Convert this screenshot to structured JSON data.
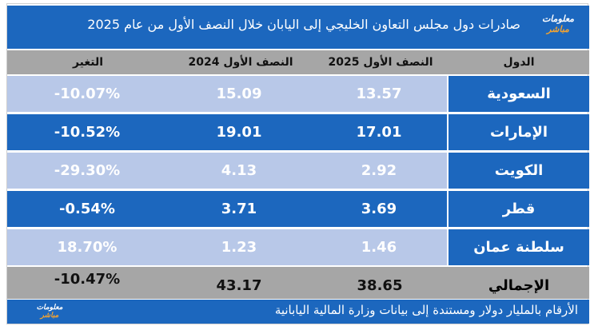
{
  "header": {
    "title": "صادرات دول مجلس التعاون الخليجي إلى اليابان خلال النصف الأول من عام 2025",
    "logo_line1": "معلومات",
    "logo_line2": "مباشر"
  },
  "columns": {
    "country": "الدول",
    "h1_2025": "النصف الأول 2025",
    "h1_2024": "النصف الأول 2024",
    "change": "التغير"
  },
  "rows": [
    {
      "country": "السعودية",
      "h1_2025": "13.57",
      "h1_2024": "15.09",
      "change": "-10.07%"
    },
    {
      "country": "الإمارات",
      "h1_2025": "17.01",
      "h1_2024": "19.01",
      "change": "-10.52%"
    },
    {
      "country": "الكويت",
      "h1_2025": "2.92",
      "h1_2024": "4.13",
      "change": "-29.30%"
    },
    {
      "country": "قطر",
      "h1_2025": "3.69",
      "h1_2024": "3.71",
      "change": "-0.54%"
    },
    {
      "country": "سلطنة عمان",
      "h1_2025": "1.46",
      "h1_2024": "1.23",
      "change": "18.70%"
    }
  ],
  "total": {
    "label": "الإجمالي",
    "h1_2025": "38.65",
    "h1_2024": "43.17",
    "change": "-10.47%"
  },
  "footer": {
    "note": "الأرقام بالمليار دولار ومستندة إلى بيانات وزارة المالية اليابانية",
    "logo_line1": "معلومات",
    "logo_line2": "مباشر"
  },
  "colors": {
    "brand_blue": "#1c67be",
    "light_row": "#b8c8e8",
    "header_gray": "#a6a6a6",
    "logo_accent": "#f3a331"
  }
}
